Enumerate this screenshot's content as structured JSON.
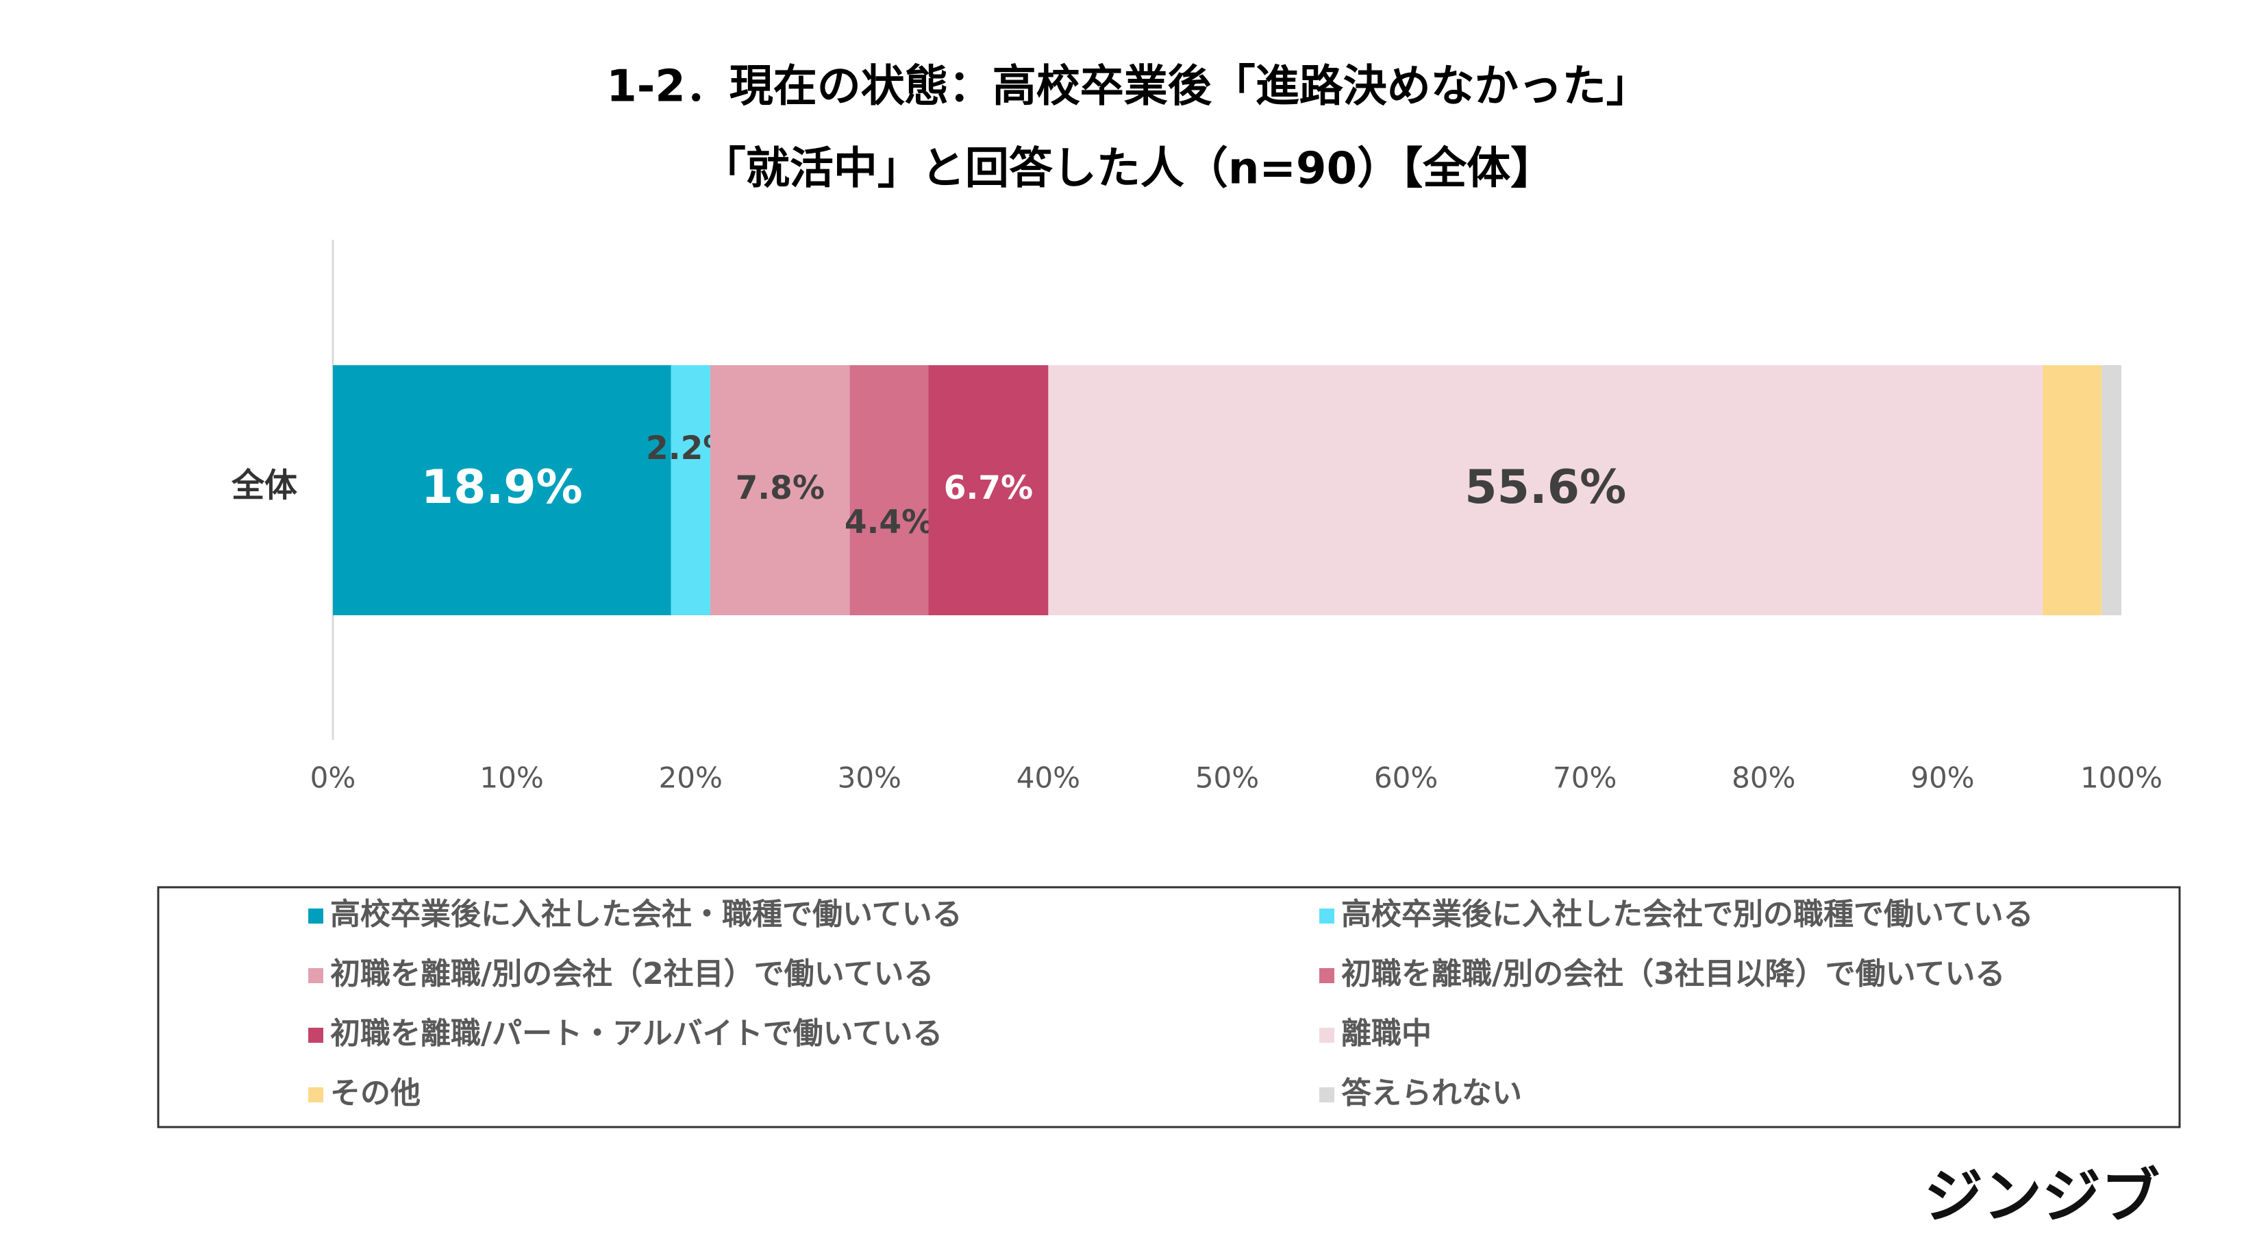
{
  "chart_data": {
    "type": "stacked-bar-horizontal",
    "title": [
      "1-2．現在の状態：高校卒業後「進路決めなかった」",
      "「就活中」と回答した人（n=90）【全体】"
    ],
    "categories": [
      "全体"
    ],
    "series": [
      {
        "name": "高校卒業後に入社した会社・職種で働いている",
        "color": "#00a0bd",
        "values": [
          18.9
        ],
        "value_labels": [
          "18.9%"
        ]
      },
      {
        "name": "高校卒業後に入社した会社で別の職種で働いている",
        "color": "#5ce1f8",
        "values": [
          2.2
        ],
        "value_labels": [
          "2.2%"
        ]
      },
      {
        "name": "初職を離職/別の会社（2社目）で働いている",
        "color": "#e3a1b0",
        "values": [
          7.8
        ],
        "value_labels": [
          "7.8%"
        ]
      },
      {
        "name": "初職を離職/別の会社（3社目以降）で働いている",
        "color": "#d4708a",
        "values": [
          4.4
        ],
        "value_labels": [
          "4.4%"
        ]
      },
      {
        "name": "初職を離職/パート・アルバイトで働いている",
        "color": "#c4446a",
        "values": [
          6.7
        ],
        "value_labels": [
          "6.7%"
        ]
      },
      {
        "name": "離職中",
        "color": "#f2d9df",
        "values": [
          55.6
        ],
        "value_labels": [
          "55.6%"
        ]
      },
      {
        "name": "その他",
        "color": "#fcd88a",
        "values": [
          3.3
        ]
      },
      {
        "name": "答えられない",
        "color": "#d9d9d9",
        "values": [
          1.1
        ]
      }
    ],
    "xlim": [
      0,
      100
    ],
    "xticks": [
      {
        "value": 0,
        "label": "0%"
      },
      {
        "value": 10,
        "label": "10%"
      },
      {
        "value": 20,
        "label": "20%"
      },
      {
        "value": 30,
        "label": "30%"
      },
      {
        "value": 40,
        "label": "40%"
      },
      {
        "value": 50,
        "label": "50%"
      },
      {
        "value": 60,
        "label": "60%"
      },
      {
        "value": 70,
        "label": "70%"
      },
      {
        "value": 80,
        "label": "80%"
      },
      {
        "value": 90,
        "label": "90%"
      },
      {
        "value": 100,
        "label": "100%"
      }
    ],
    "legend": "bottom",
    "brand": "ジンジブ"
  }
}
